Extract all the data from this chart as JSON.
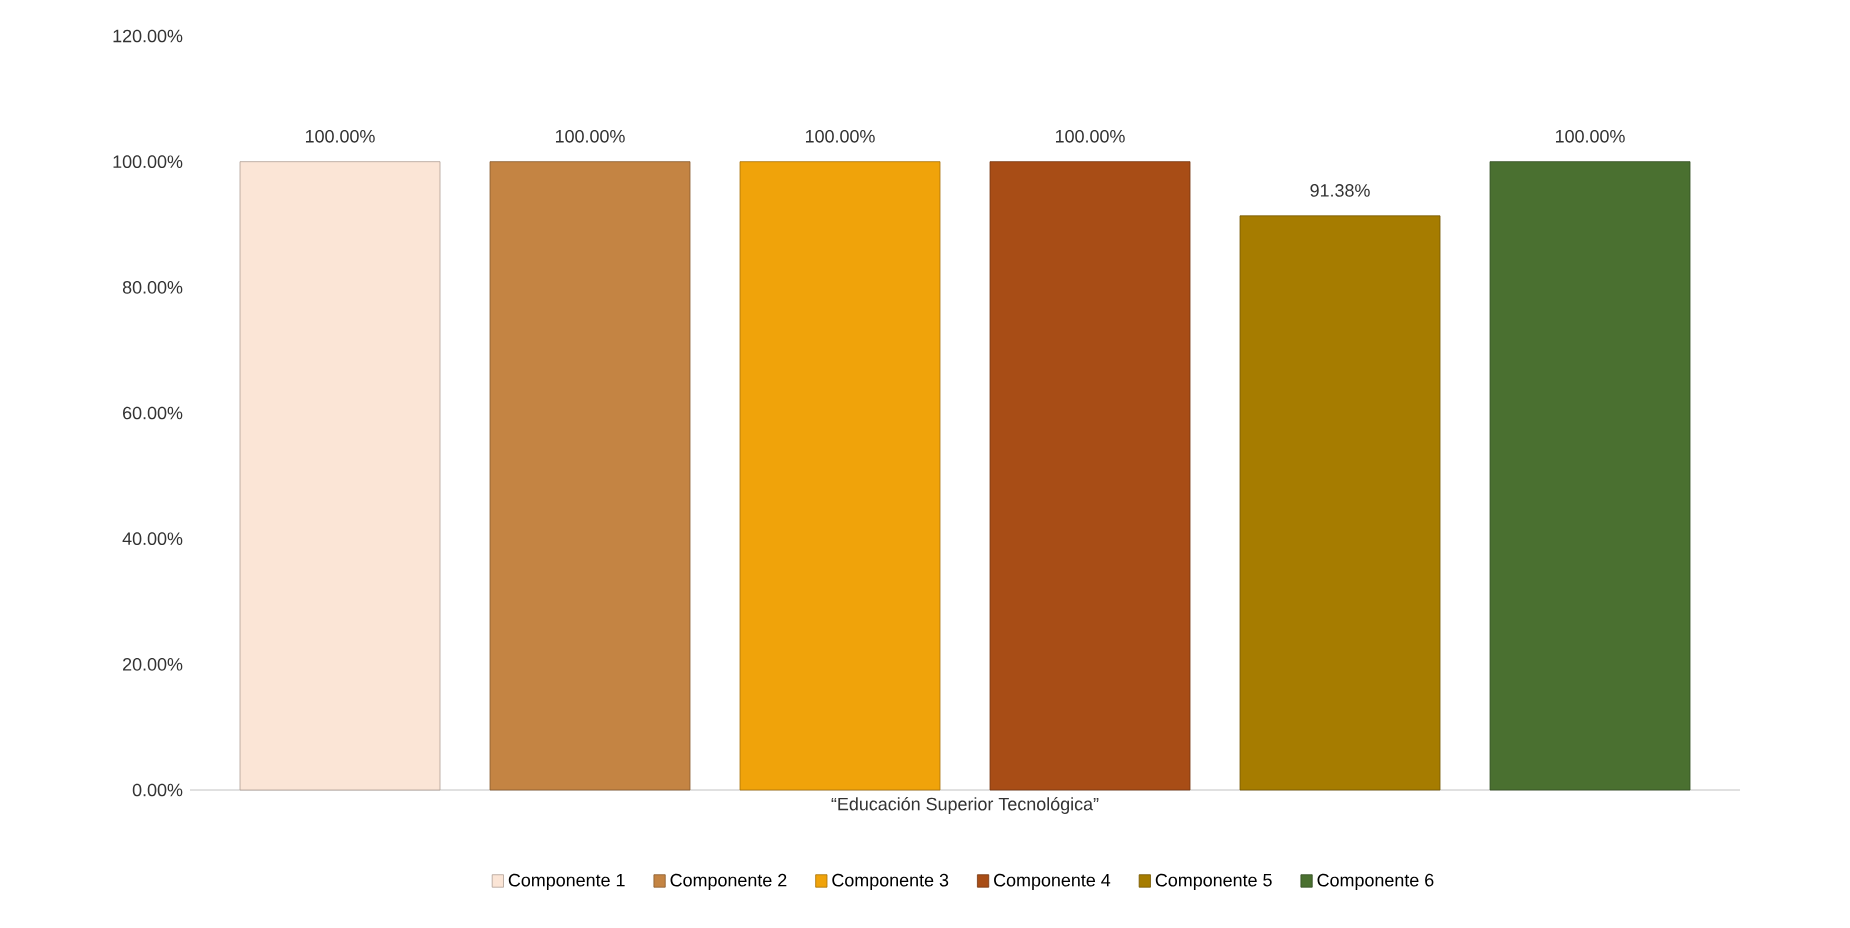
{
  "chart_data": {
    "type": "bar",
    "categories": [
      "“Educación  Superior Tecnológica”"
    ],
    "series": [
      {
        "name": "Componente 1",
        "color": "#fbe5d6",
        "values": [
          100
        ],
        "value_labels": [
          "100.00%"
        ]
      },
      {
        "name": "Componente 2",
        "color": "#c48443",
        "values": [
          100
        ],
        "value_labels": [
          "100.00%"
        ]
      },
      {
        "name": "Componente 3",
        "color": "#f0a30a",
        "values": [
          100
        ],
        "value_labels": [
          "100.00%"
        ]
      },
      {
        "name": "Componente 4",
        "color": "#a84d16",
        "values": [
          100
        ],
        "value_labels": [
          "100.00%"
        ]
      },
      {
        "name": "Componente 5",
        "color": "#a67c00",
        "values": [
          91.38
        ],
        "value_labels": [
          "91.38%"
        ]
      },
      {
        "name": "Componente 6",
        "color": "#4a7030",
        "values": [
          100
        ],
        "value_labels": [
          "100.00%"
        ]
      }
    ],
    "ylim": [
      0,
      120
    ],
    "yticks": [
      {
        "value": 0,
        "label": "0.00%"
      },
      {
        "value": 20,
        "label": "20.00%"
      },
      {
        "value": 40,
        "label": "40.00%"
      },
      {
        "value": 60,
        "label": "60.00%"
      },
      {
        "value": 80,
        "label": "80.00%"
      },
      {
        "value": 100,
        "label": "100.00%"
      },
      {
        "value": 120,
        "label": "120.00%"
      }
    ],
    "legend": "bottom"
  }
}
